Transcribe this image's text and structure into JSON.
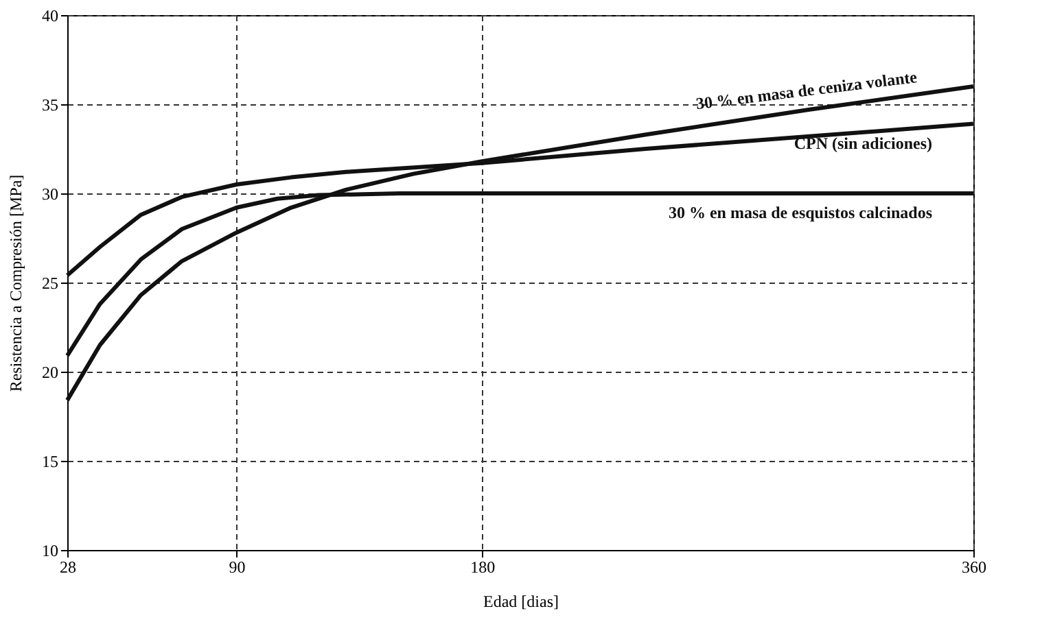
{
  "chart_data": {
    "type": "line",
    "xlabel": "Edad [dias]",
    "ylabel": "Resistencia a Compresión [MPa]",
    "xlim": [
      28,
      360
    ],
    "xticks": [
      28,
      90,
      180,
      360
    ],
    "ylim": [
      10,
      40
    ],
    "yticks": [
      10,
      15,
      20,
      25,
      30,
      35,
      40
    ],
    "grid": true,
    "legend": false,
    "marker": "none",
    "line_style": "solid",
    "series": [
      {
        "name": "CPN (sin adiciones)",
        "color": "#111111",
        "x": [
          28,
          40,
          55,
          70,
          90,
          110,
          130,
          180,
          240,
          300,
          360
        ],
        "values": [
          25.4,
          27.0,
          28.8,
          29.8,
          30.5,
          30.9,
          31.2,
          31.7,
          32.5,
          33.2,
          33.9
        ]
      },
      {
        "name": "30 % en masa de esquistos calcinados",
        "color": "#111111",
        "x": [
          28,
          40,
          55,
          70,
          90,
          105,
          120,
          150,
          180,
          360
        ],
        "values": [
          20.9,
          23.8,
          26.3,
          28.0,
          29.2,
          29.7,
          29.9,
          30.0,
          30.0,
          30.0
        ]
      },
      {
        "name": "30 % en masa de ceniza volante",
        "color": "#111111",
        "x": [
          28,
          40,
          55,
          70,
          90,
          110,
          130,
          155,
          180,
          240,
          300,
          360
        ],
        "values": [
          18.4,
          21.5,
          24.3,
          26.2,
          27.8,
          29.2,
          30.2,
          31.1,
          31.8,
          33.3,
          34.7,
          36.0
        ]
      }
    ]
  }
}
